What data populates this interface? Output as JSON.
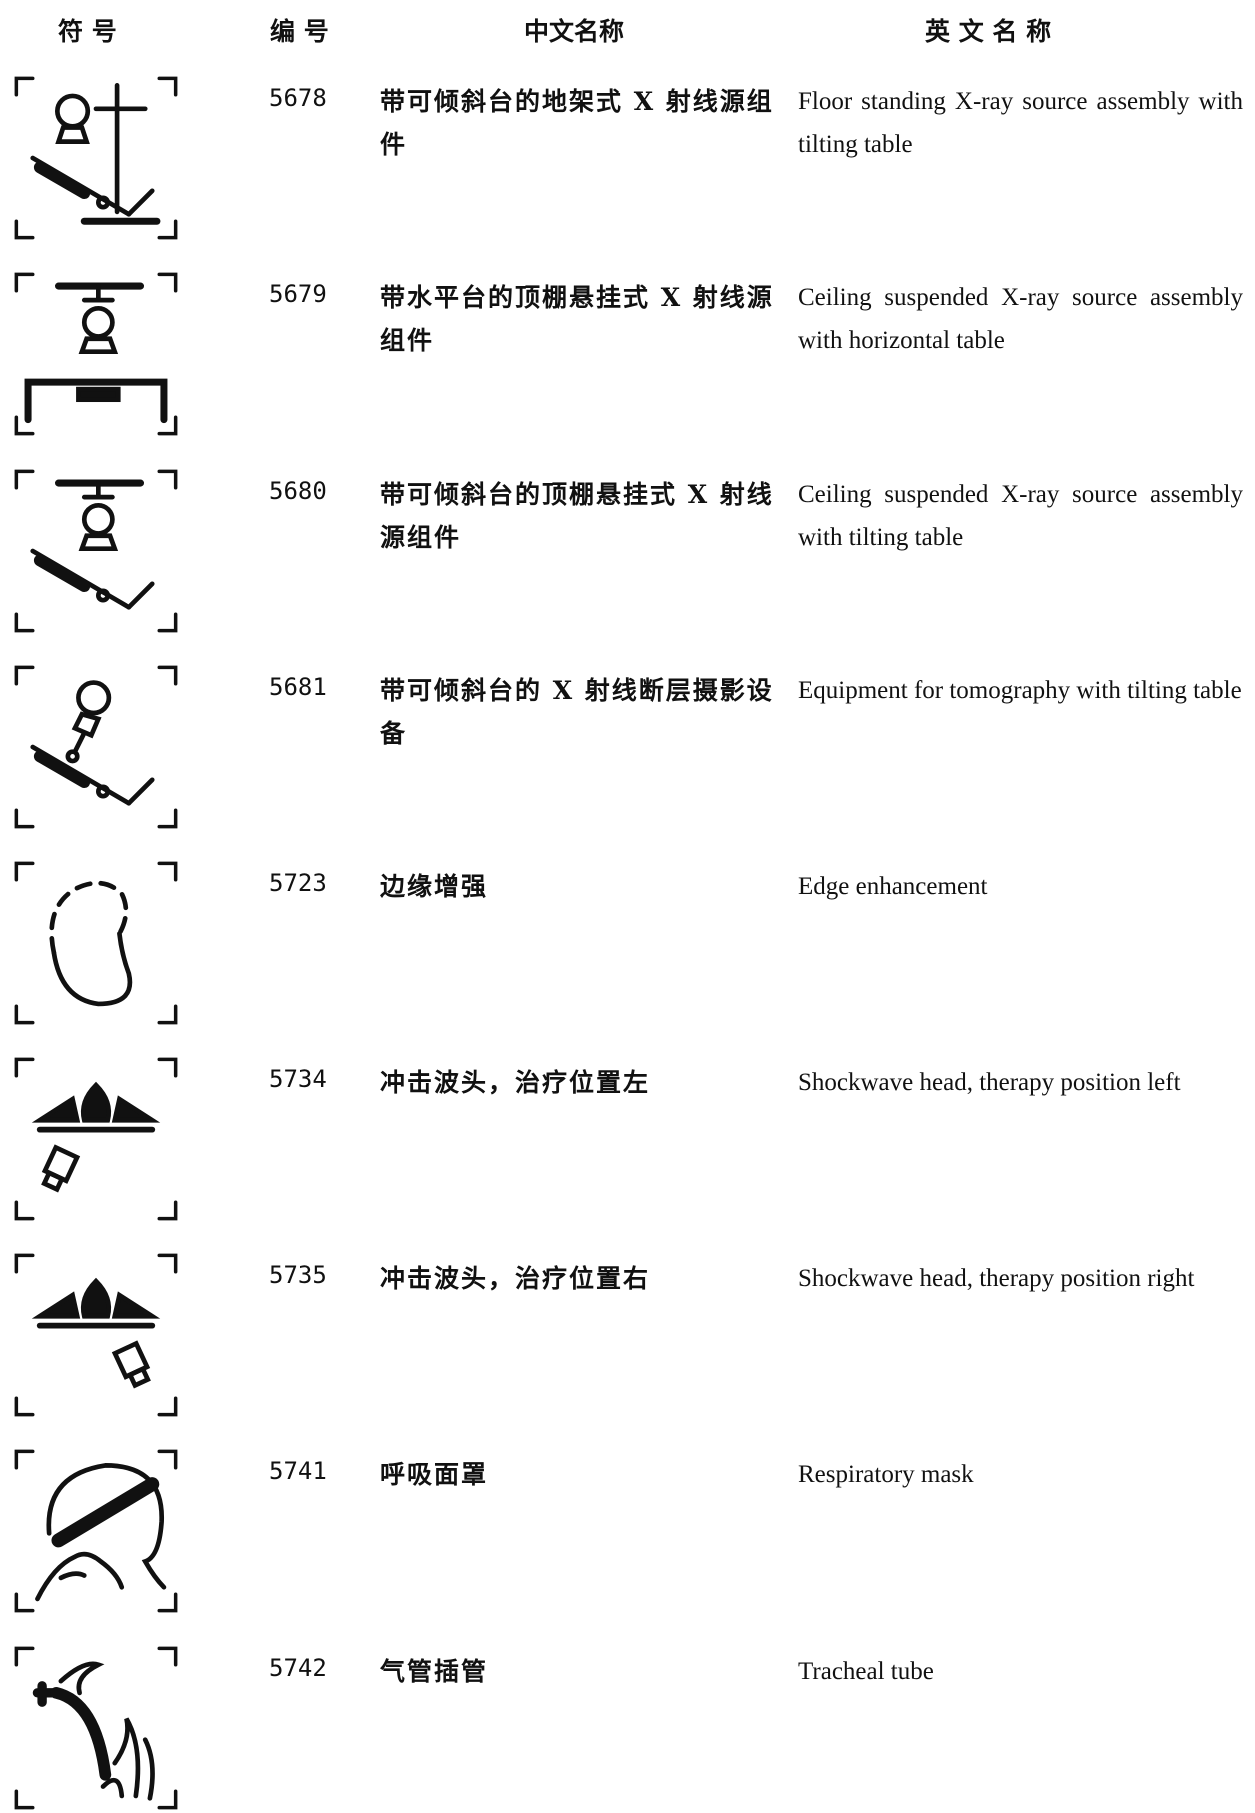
{
  "header": {
    "symbol": "符 号",
    "number": "编 号",
    "chinese_name": "中文名称",
    "english_name": "英 文 名 称"
  },
  "rows": [
    {
      "number": "5678",
      "chinese_name": "带可倾斜台的地架式 X 射线源组件",
      "english_name": "Floor standing X-ray source assembly with tilting table"
    },
    {
      "number": "5679",
      "chinese_name": "带水平台的顶棚悬挂式 X 射线源组件",
      "english_name": "Ceiling suspended X-ray source assembly with horizontal table"
    },
    {
      "number": "5680",
      "chinese_name": "带可倾斜台的顶棚悬挂式 X 射线源组件",
      "english_name": "Ceiling suspended X-ray source assembly with tilting table"
    },
    {
      "number": "5681",
      "chinese_name": "带可倾斜台的 X 射线断层摄影设备",
      "english_name": "Equipment for tomography with tilting table"
    },
    {
      "number": "5723",
      "chinese_name": "边缘增强",
      "english_name": "Edge enhancement"
    },
    {
      "number": "5734",
      "chinese_name": "冲击波头，治疗位置左",
      "english_name": "Shockwave head, therapy position left"
    },
    {
      "number": "5735",
      "chinese_name": "冲击波头，治疗位置右",
      "english_name": "Shockwave head, therapy position right"
    },
    {
      "number": "5741",
      "chinese_name": "呼吸面罩",
      "english_name": "Respiratory mask"
    },
    {
      "number": "5742",
      "chinese_name": "气管插管",
      "english_name": "Tracheal tube"
    }
  ]
}
